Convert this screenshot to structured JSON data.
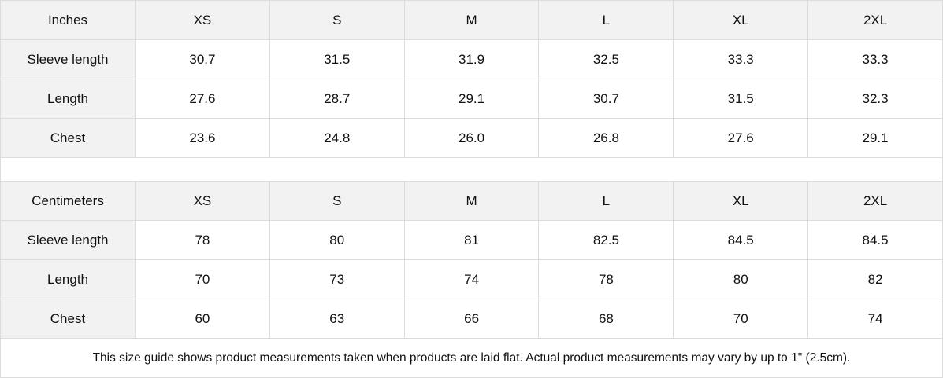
{
  "tables": [
    {
      "unit": "Inches",
      "sizes": [
        "XS",
        "S",
        "M",
        "L",
        "XL",
        "2XL"
      ],
      "rows": [
        {
          "label": "Sleeve length",
          "values": [
            "30.7",
            "31.5",
            "31.9",
            "32.5",
            "33.3",
            "33.3"
          ]
        },
        {
          "label": "Length",
          "values": [
            "27.6",
            "28.7",
            "29.1",
            "30.7",
            "31.5",
            "32.3"
          ]
        },
        {
          "label": "Chest",
          "values": [
            "23.6",
            "24.8",
            "26.0",
            "26.8",
            "27.6",
            "29.1"
          ]
        }
      ]
    },
    {
      "unit": "Centimeters",
      "sizes": [
        "XS",
        "S",
        "M",
        "L",
        "XL",
        "2XL"
      ],
      "rows": [
        {
          "label": "Sleeve length",
          "values": [
            "78",
            "80",
            "81",
            "82.5",
            "84.5",
            "84.5"
          ]
        },
        {
          "label": "Length",
          "values": [
            "70",
            "73",
            "74",
            "78",
            "80",
            "82"
          ]
        },
        {
          "label": "Chest",
          "values": [
            "60",
            "63",
            "66",
            "68",
            "70",
            "74"
          ]
        }
      ]
    }
  ],
  "note": "This size guide shows product measurements taken when products are laid flat.  Actual product measurements may vary by up to 1\" (2.5cm)."
}
